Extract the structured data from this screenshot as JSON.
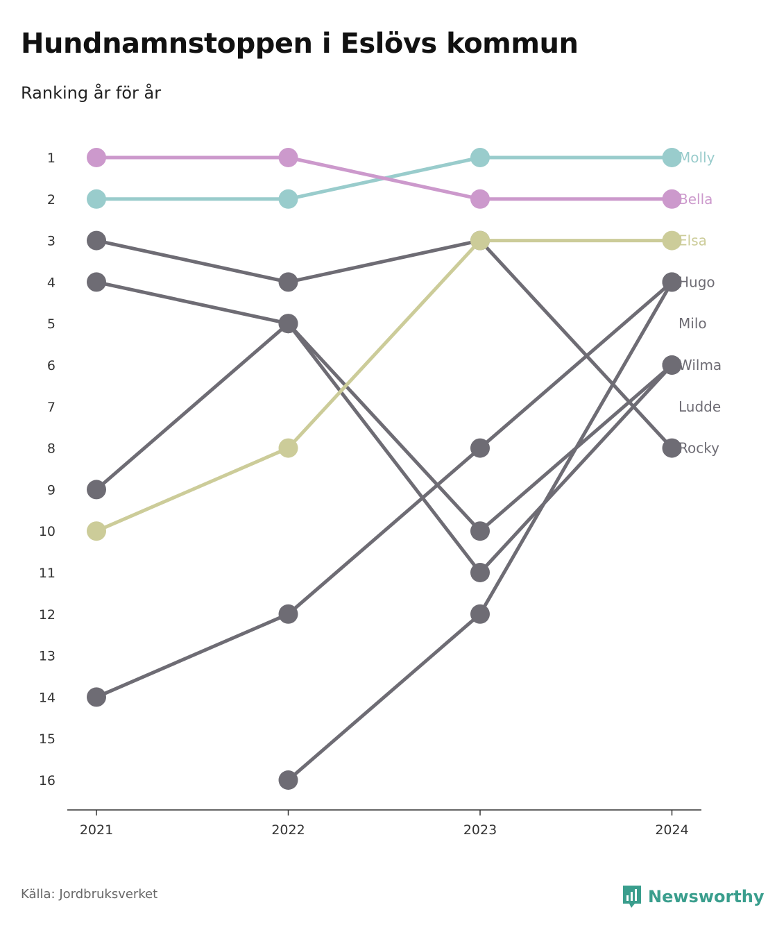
{
  "header": {
    "title": "Hundnamnstoppen i Eslövs kommun",
    "subtitle": "Ranking år för år"
  },
  "footer": {
    "source": "Källa: Jordbruksverket",
    "brand": "Newsworthy",
    "brand_icon": "newsworthy-logo-icon"
  },
  "colors": {
    "grey": "#6e6c74",
    "pink": "#cc99cc",
    "teal": "#99cccc",
    "olive": "#cccc99",
    "brand": "#3a9e8d",
    "axis": "#333333"
  },
  "chart_data": {
    "type": "line",
    "x": [
      2021,
      2022,
      2023,
      2024
    ],
    "x_tick_labels": [
      "2021",
      "2022",
      "2023",
      "2024"
    ],
    "y_tick_labels": [
      "1",
      "2",
      "3",
      "4",
      "5",
      "6",
      "7",
      "8",
      "9",
      "10",
      "11",
      "12",
      "13",
      "14",
      "15",
      "16"
    ],
    "ylim": [
      1,
      16
    ],
    "y_inverted": true,
    "grid": false,
    "legend": "direct labels at right end",
    "series": [
      {
        "name": "Molly",
        "color": "#99cccc",
        "values": [
          2,
          2,
          1,
          1
        ]
      },
      {
        "name": "Bella",
        "color": "#cc99cc",
        "values": [
          1,
          1,
          2,
          2
        ]
      },
      {
        "name": "Elsa",
        "color": "#cccc99",
        "values": [
          10,
          8,
          3,
          3
        ]
      },
      {
        "name": "Hugo",
        "color": "#6e6c74",
        "values": [
          14,
          12,
          8,
          4
        ]
      },
      {
        "name": "Milo",
        "color": "#6e6c74",
        "values": [
          null,
          16,
          12,
          4
        ]
      },
      {
        "name": "Wilma",
        "color": "#6e6c74",
        "values": [
          9,
          5,
          10,
          6
        ]
      },
      {
        "name": "Ludde",
        "color": "#6e6c74",
        "values": [
          4,
          5,
          11,
          6
        ]
      },
      {
        "name": "Rocky",
        "color": "#6e6c74",
        "values": [
          3,
          4,
          3,
          8
        ]
      }
    ],
    "end_labels": [
      {
        "name": "Molly",
        "rank": 1,
        "color": "#99cccc"
      },
      {
        "name": "Bella",
        "rank": 2,
        "color": "#cc99cc"
      },
      {
        "name": "Elsa",
        "rank": 3,
        "color": "#cccc99"
      },
      {
        "name": "Hugo",
        "rank": 4,
        "color": "#6e6c74"
      },
      {
        "name": "Milo",
        "rank": 5,
        "color": "#6e6c74"
      },
      {
        "name": "Wilma",
        "rank": 6,
        "color": "#6e6c74"
      },
      {
        "name": "Ludde",
        "rank": 7,
        "color": "#6e6c74"
      },
      {
        "name": "Rocky",
        "rank": 8,
        "color": "#6e6c74"
      }
    ]
  }
}
